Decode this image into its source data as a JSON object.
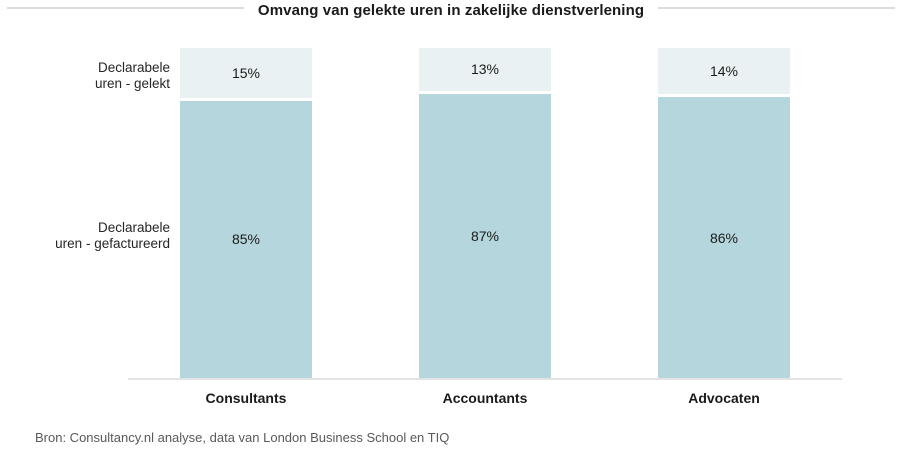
{
  "title": "Omvang van gelekte uren in zakelijke dienstverlening",
  "source_note": "Bron: Consultancy.nl analyse, data van London Business School en TIQ",
  "row_labels": {
    "gelekt": "Declarabele\nuren - gelekt",
    "gefactureerd": "Declarabele\nuren - gefactureerd"
  },
  "colors": {
    "segment_gelekt": "#e9f1f2",
    "segment_gefactureerd": "#b5d6dc",
    "axis_line": "#e3e3e3",
    "header_rule": "#dcdcdc",
    "source_text": "#595959"
  },
  "chart_data": {
    "type": "bar",
    "stacked": true,
    "orientation": "vertical",
    "title": "Omvang van gelekte uren in zakelijke dienstverlening",
    "categories": [
      "Consultants",
      "Accountants",
      "Advocaten"
    ],
    "series": [
      {
        "name": "Declarabele uren - gelekt",
        "values": [
          15,
          13,
          14
        ],
        "labels": [
          "15%",
          "13%",
          "14%"
        ],
        "color": "#e9f1f2"
      },
      {
        "name": "Declarabele uren - gefactureerd",
        "values": [
          85,
          87,
          86
        ],
        "labels": [
          "85%",
          "87%",
          "86%"
        ],
        "color": "#b5d6dc"
      }
    ],
    "ylim": [
      0,
      100
    ],
    "grid": false,
    "legend_position": "left-row-labels",
    "value_labels_shown": true,
    "source": "Bron: Consultancy.nl analyse, data van London Business School en TIQ"
  }
}
